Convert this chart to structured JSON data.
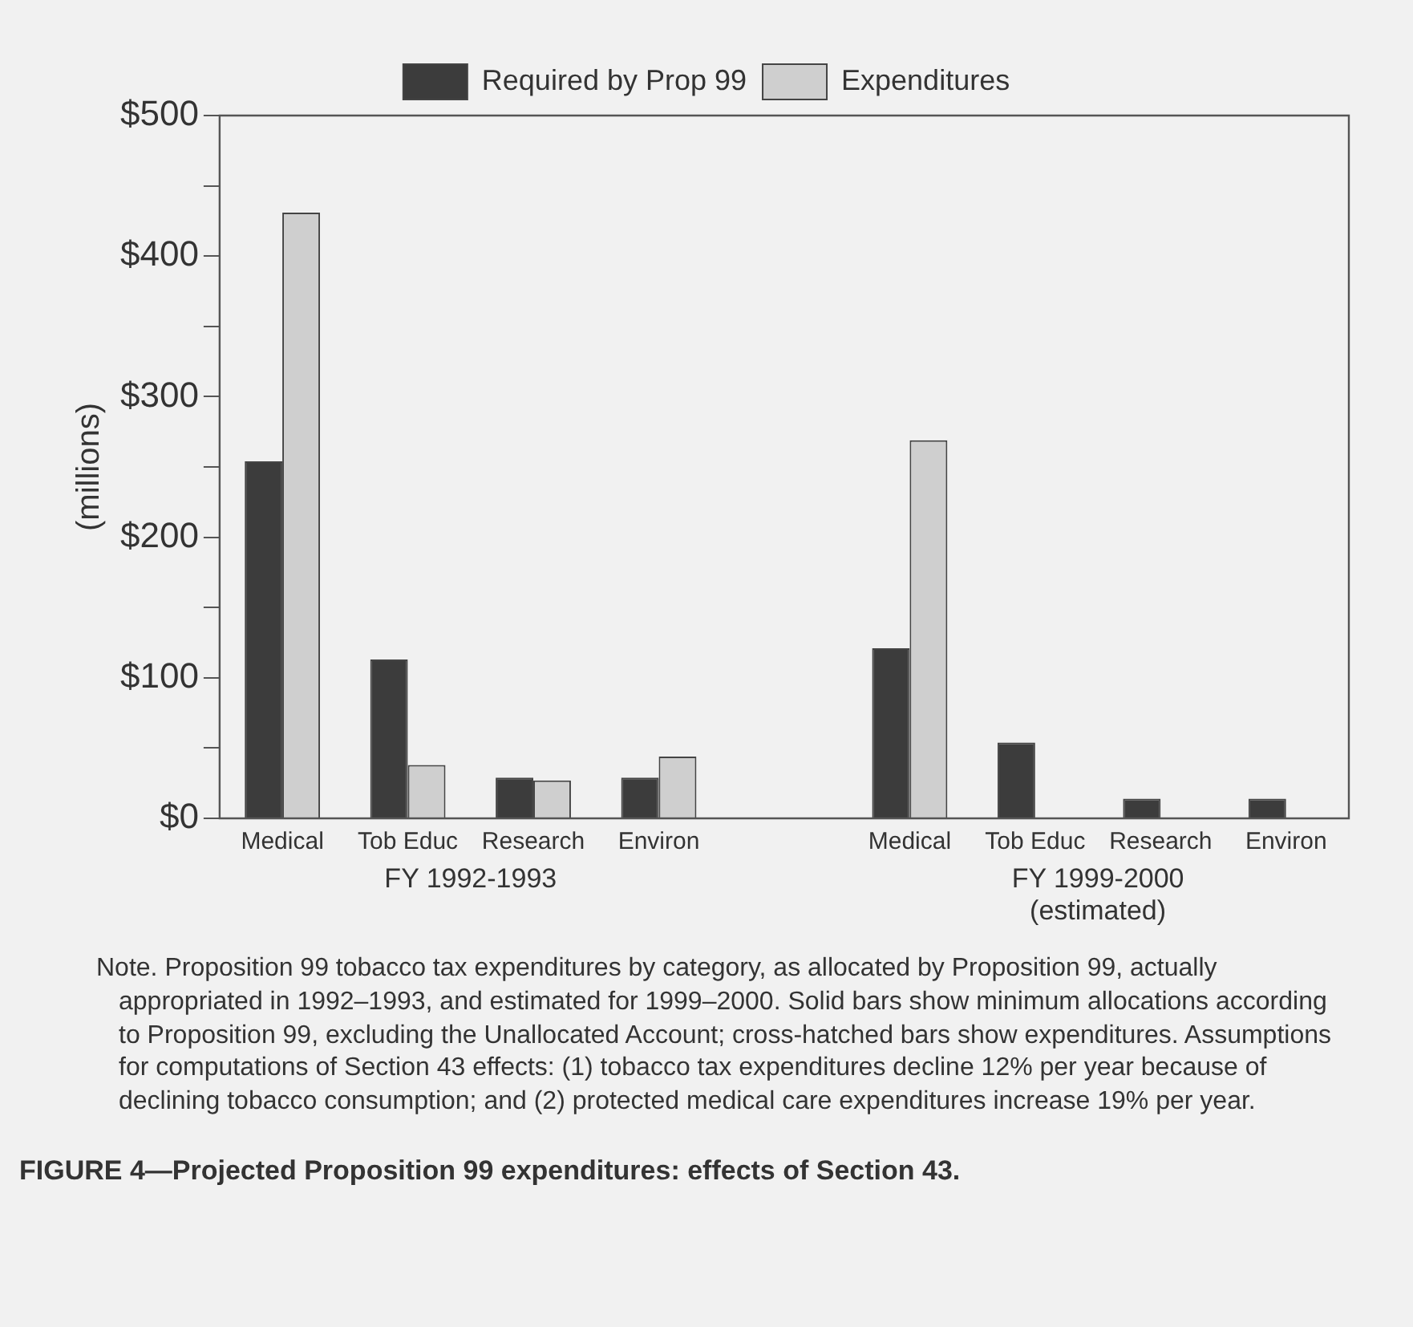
{
  "chart_data": {
    "type": "bar",
    "ylabel": "(millions)",
    "title": "FIGURE 4—Projected Proposition 99 expenditures: effects of Section 43.",
    "categories": [
      "Medical",
      "Tob Educ",
      "Research",
      "Environ",
      null,
      "Medical",
      "Tob Educ",
      "Research",
      "Environ"
    ],
    "series": [
      {
        "name": "Required by Prop 99",
        "color": "#3c3c3c",
        "values": [
          254,
          113,
          29,
          29,
          null,
          121,
          54,
          14,
          14
        ]
      },
      {
        "name": "Expenditures",
        "color": "#cfcfcf",
        "values": [
          431,
          38,
          27,
          44,
          null,
          269,
          0,
          0,
          0
        ]
      }
    ],
    "ylim": [
      0,
      500
    ],
    "yticks": [
      {
        "value": 0,
        "label": "$0"
      },
      {
        "value": 50,
        "label": null
      },
      {
        "value": 100,
        "label": "$100"
      },
      {
        "value": 150,
        "label": null
      },
      {
        "value": 200,
        "label": "$200"
      },
      {
        "value": 250,
        "label": null
      },
      {
        "value": 300,
        "label": "$300"
      },
      {
        "value": 350,
        "label": null
      },
      {
        "value": 400,
        "label": "$400"
      },
      {
        "value": 450,
        "label": null
      },
      {
        "value": 500,
        "label": "$500"
      }
    ],
    "grid": false,
    "legend": "top",
    "annotations": [
      "FY 1992-1993",
      "FY 1999-2000\n(estimated)",
      "Note. Proposition 99 tobacco tax expenditures by category, as allocated by Proposition 99, actually appropriated in 1992–1993, and estimated for 1999–2000. Solid bars show minimum allocations according to Proposition 99, excluding the Unallocated Account; cross-hatched bars show expenditures. Assumptions for computations of Section 43 effects: (1) tobacco tax expenditures decline 12% per year because of declining tobacco consumption; and (2) protected medical care expenditures increase 19% per year."
    ]
  }
}
